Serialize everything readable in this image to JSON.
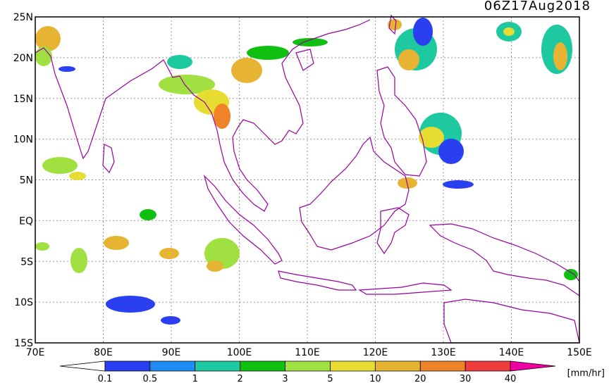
{
  "title": "06Z17Aug2018",
  "lat_labels": [
    "25N",
    "20N",
    "15N",
    "10N",
    "5N",
    "EQ",
    "5S",
    "10S",
    "15S"
  ],
  "lon_labels": [
    "70E",
    "80E",
    "90E",
    "100E",
    "110E",
    "120E",
    "130E",
    "140E",
    "150E"
  ],
  "colorbar": {
    "labels": [
      "0.1",
      "0.5",
      "1",
      "2",
      "3",
      "5",
      "10",
      "20",
      "30",
      "40"
    ],
    "colors": [
      "#ffffff",
      "#2a40f0",
      "#1e8cf0",
      "#1ec8a0",
      "#10c010",
      "#a0e040",
      "#e6dc32",
      "#e6b432",
      "#f08228",
      "#f03c3c",
      "#f000a0"
    ],
    "unit": "[mm/hr]"
  }
}
